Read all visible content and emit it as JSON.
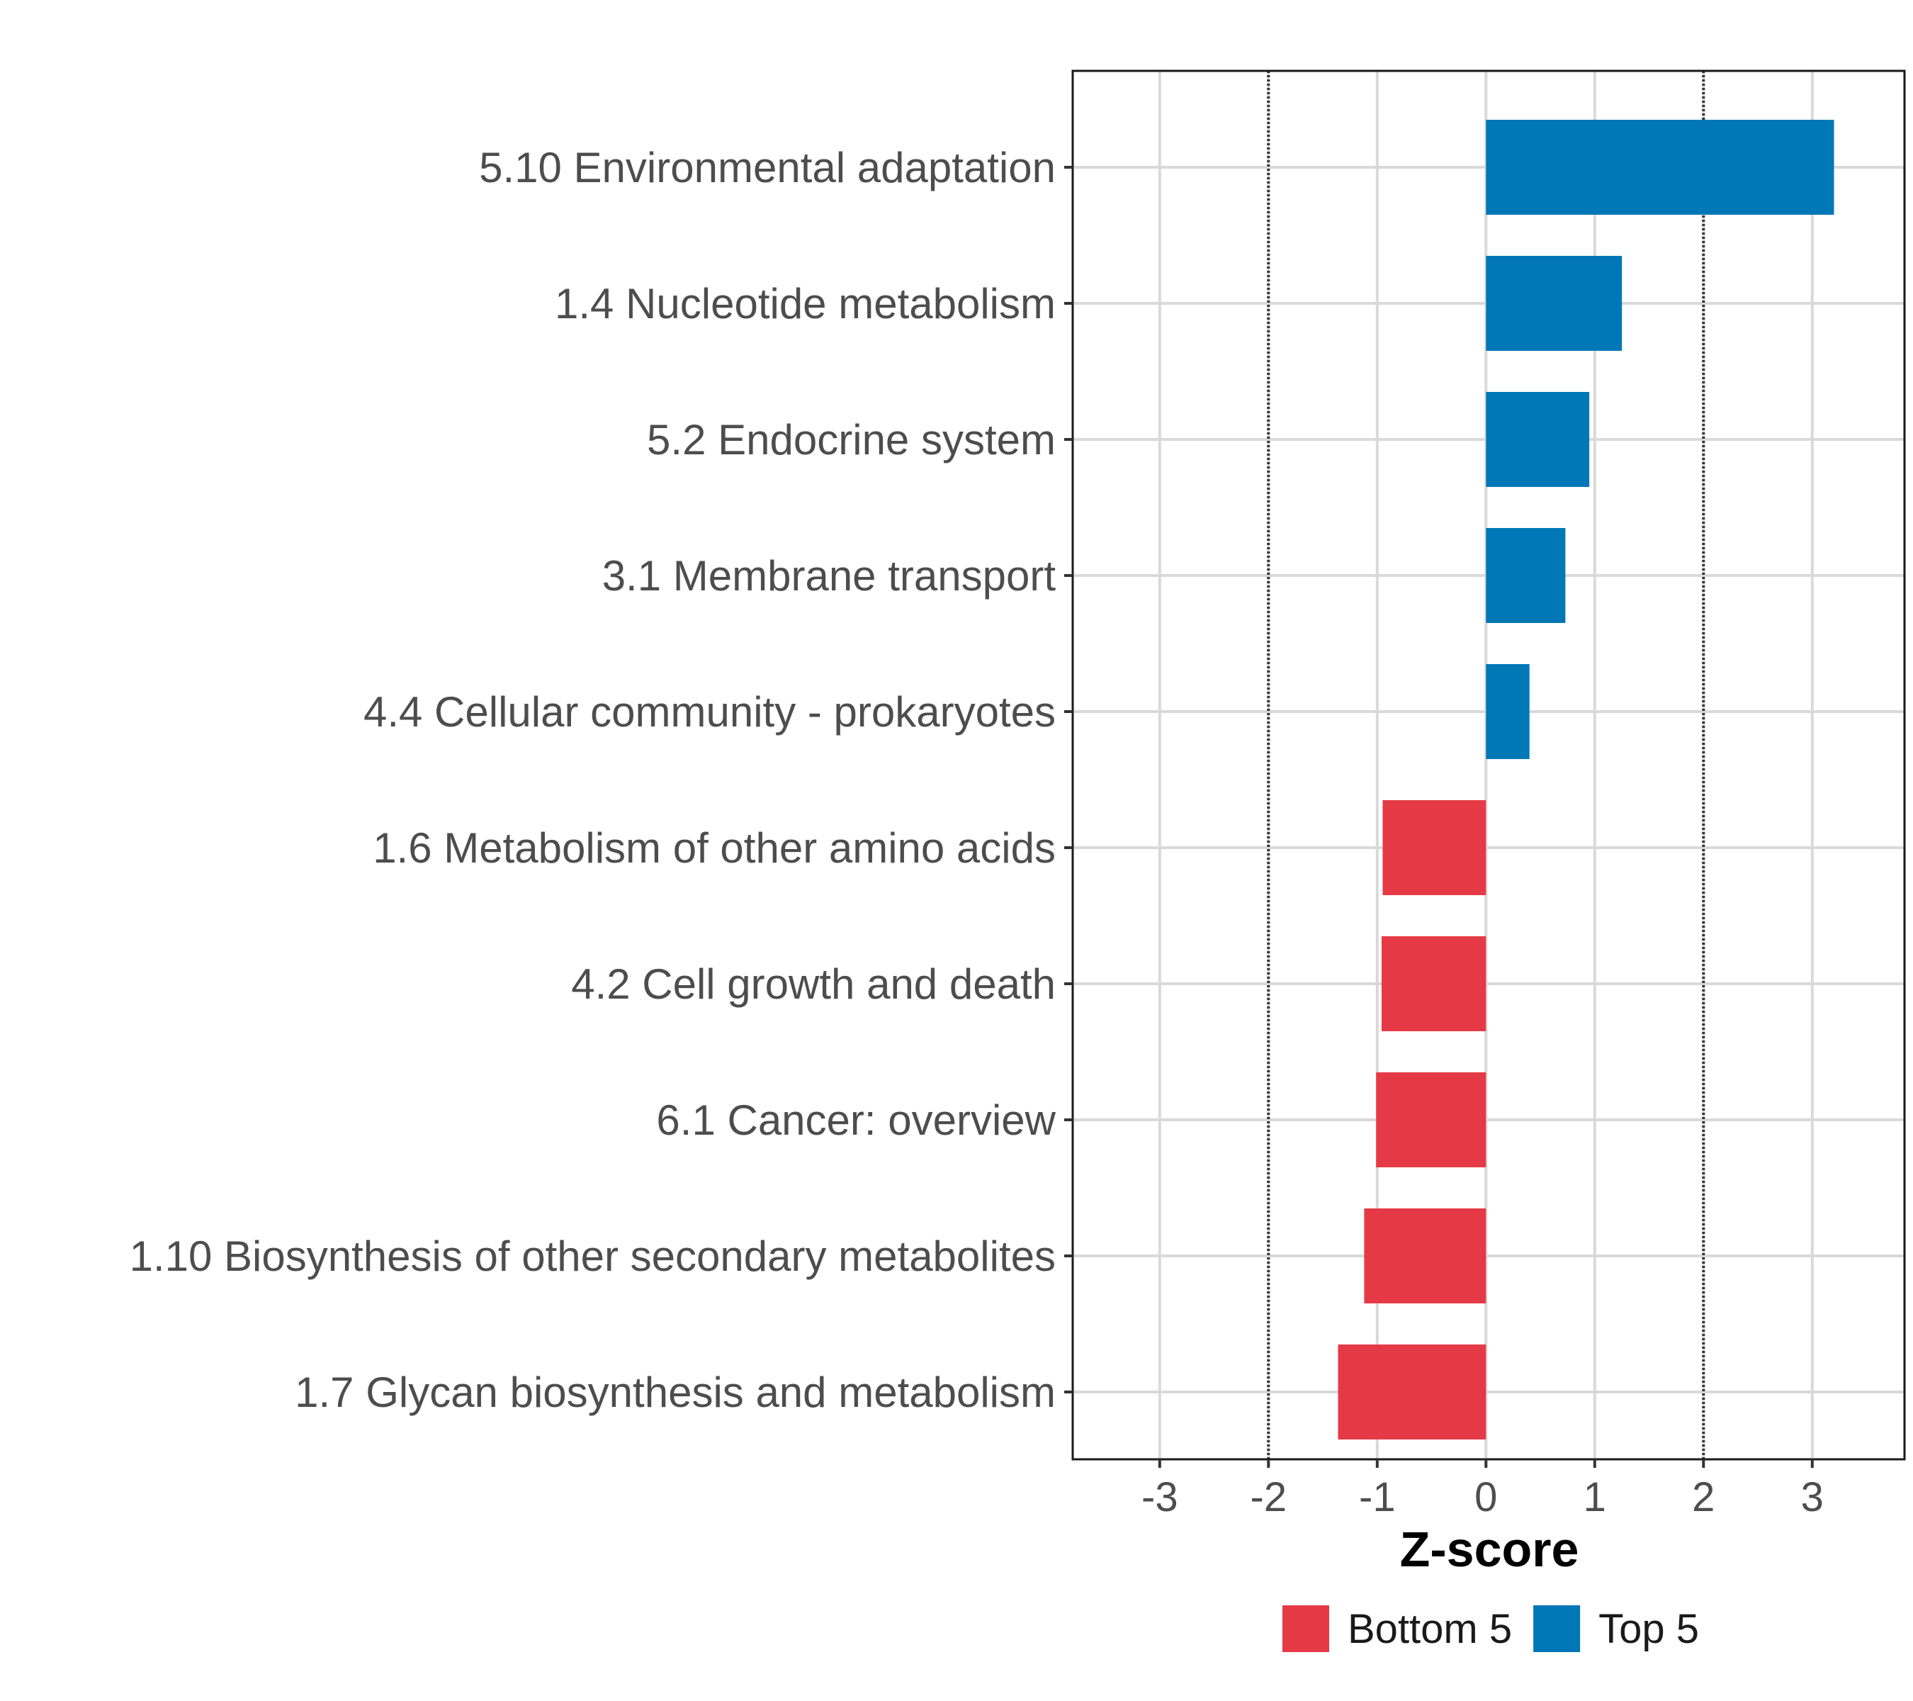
{
  "chart_data": {
    "type": "bar",
    "orientation": "horizontal",
    "title": "",
    "xlabel": "Z-score",
    "ylabel": "",
    "xlim": [
      -3.8,
      3.85
    ],
    "xticks": [
      "-3",
      "-2",
      "-1",
      "0",
      "1",
      "2",
      "3"
    ],
    "reference_lines": [
      -2,
      2
    ],
    "grid": true,
    "legend_position": "bottom",
    "categories": [
      "5.10 Environmental adaptation",
      "1.4 Nucleotide metabolism",
      "5.2 Endocrine system",
      "3.1 Membrane transport",
      "4.4 Cellular community - prokaryotes",
      "1.6 Metabolism of other amino acids",
      "4.2 Cell growth and death",
      "6.1 Cancer: overview",
      "1.10 Biosynthesis of other secondary metabolites",
      "1.7 Glycan biosynthesis and metabolism"
    ],
    "values": [
      3.2,
      1.25,
      0.95,
      0.73,
      0.4,
      -0.95,
      -0.96,
      -1.01,
      -1.12,
      -1.36
    ],
    "groups": [
      "Top 5",
      "Top 5",
      "Top 5",
      "Top 5",
      "Top 5",
      "Bottom 5",
      "Bottom 5",
      "Bottom 5",
      "Bottom 5",
      "Bottom 5"
    ],
    "legend": [
      {
        "name": "Bottom 5",
        "color": "#E63946"
      },
      {
        "name": "Top 5",
        "color": "#0077B6"
      }
    ]
  }
}
